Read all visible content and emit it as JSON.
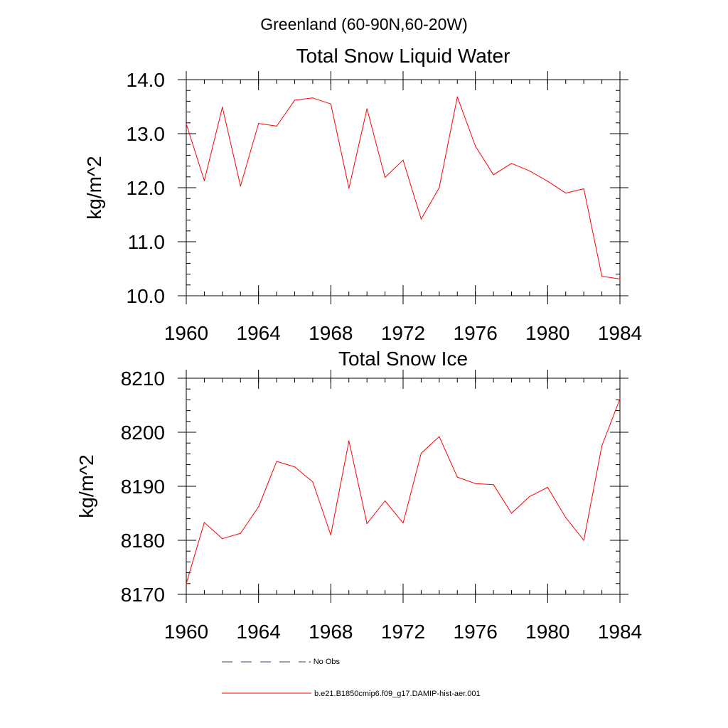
{
  "suptitle": "Greenland (60-90N,60-20W)",
  "colors": {
    "model": "#ff0000",
    "obs": "#3d3d6b",
    "axis": "#000000"
  },
  "legend": {
    "items": [
      {
        "label": "- No Obs",
        "style": "dashed",
        "color": "#3d3d6b"
      },
      {
        "label": "b.e21.B1850cmip6.f09_g17.DAMIP-hist-aer.001",
        "style": "solid",
        "color": "#ff0000"
      }
    ]
  },
  "chart_data": [
    {
      "type": "line",
      "title": "Total Snow Liquid Water",
      "ylabel": "kg/m^2",
      "xlabel": "",
      "xlim": [
        1960,
        1984
      ],
      "ylim": [
        10,
        14
      ],
      "xticks": [
        "1960",
        "1964",
        "1968",
        "1972",
        "1976",
        "1980",
        "1984"
      ],
      "yticks": [
        "10.0",
        "11.0",
        "12.0",
        "13.0",
        "14.0"
      ],
      "grid": false,
      "x": [
        1960,
        1961,
        1962,
        1963,
        1964,
        1965,
        1966,
        1967,
        1968,
        1969,
        1970,
        1971,
        1972,
        1973,
        1974,
        1975,
        1976,
        1977,
        1978,
        1979,
        1980,
        1981,
        1982,
        1983,
        1984
      ],
      "series": [
        {
          "name": "b.e21.B1850cmip6.f09_g17.DAMIP-hist-aer.001",
          "values": [
            13.18,
            12.13,
            13.49,
            12.03,
            13.19,
            13.14,
            13.62,
            13.66,
            13.55,
            11.99,
            13.46,
            12.19,
            12.51,
            11.42,
            12.0,
            13.68,
            12.77,
            12.24,
            12.45,
            12.31,
            12.12,
            11.9,
            11.98,
            10.36,
            10.31
          ]
        }
      ]
    },
    {
      "type": "line",
      "title": "Total Snow Ice",
      "ylabel": "kg/m^2",
      "xlabel": "",
      "xlim": [
        1960,
        1984
      ],
      "ylim": [
        8170,
        8210
      ],
      "xticks": [
        "1960",
        "1964",
        "1968",
        "1972",
        "1976",
        "1980",
        "1984"
      ],
      "yticks": [
        "8170",
        "8180",
        "8190",
        "8200",
        "8210"
      ],
      "grid": false,
      "x": [
        1960,
        1961,
        1962,
        1963,
        1964,
        1965,
        1966,
        1967,
        1968,
        1969,
        1970,
        1971,
        1972,
        1973,
        1974,
        1975,
        1976,
        1977,
        1978,
        1979,
        1980,
        1981,
        1982,
        1983,
        1984
      ],
      "series": [
        {
          "name": "b.e21.B1850cmip6.f09_g17.DAMIP-hist-aer.001",
          "values": [
            8172.0,
            8183.3,
            8180.3,
            8181.3,
            8186.2,
            8194.6,
            8193.6,
            8190.8,
            8181.0,
            8198.4,
            8183.1,
            8187.3,
            8183.2,
            8196.1,
            8199.2,
            8191.7,
            8190.5,
            8190.3,
            8185.0,
            8188.1,
            8189.8,
            8184.2,
            8180.0,
            8197.5,
            8206.2
          ]
        }
      ]
    }
  ]
}
